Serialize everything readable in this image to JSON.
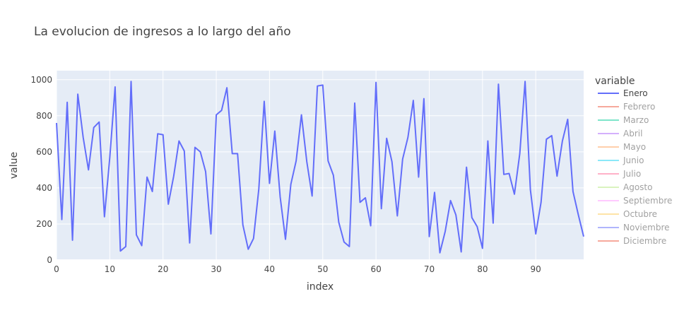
{
  "chart_data": {
    "type": "line",
    "title": "La evolucion de ingresos a lo largo del año",
    "xlabel": "index",
    "ylabel": "value",
    "xlim": [
      0,
      99
    ],
    "ylim": [
      0,
      1050
    ],
    "x_ticks": [
      0,
      10,
      20,
      30,
      40,
      50,
      60,
      70,
      80,
      90
    ],
    "y_ticks": [
      0,
      200,
      400,
      600,
      800,
      1000
    ],
    "grid": true,
    "legend": {
      "title": "variable",
      "placement": "right",
      "entries": [
        {
          "name": "Enero",
          "color": "#636efa",
          "visible": true
        },
        {
          "name": "Febrero",
          "color": "#ef553b",
          "visible": false
        },
        {
          "name": "Marzo",
          "color": "#00cc96",
          "visible": false
        },
        {
          "name": "Abril",
          "color": "#ab63fa",
          "visible": false
        },
        {
          "name": "Mayo",
          "color": "#ffa15a",
          "visible": false
        },
        {
          "name": "Junio",
          "color": "#19d3f3",
          "visible": false
        },
        {
          "name": "Julio",
          "color": "#ff6692",
          "visible": false
        },
        {
          "name": "Agosto",
          "color": "#b6e880",
          "visible": false
        },
        {
          "name": "Septiembre",
          "color": "#ff97ff",
          "visible": false
        },
        {
          "name": "Octubre",
          "color": "#fecb52",
          "visible": false
        },
        {
          "name": "Noviembre",
          "color": "#636efa",
          "visible": false
        },
        {
          "name": "Diciembre",
          "color": "#ef553b",
          "visible": false
        }
      ]
    },
    "series": [
      {
        "name": "Enero",
        "color": "#636efa",
        "values": [
          760,
          225,
          875,
          110,
          920,
          680,
          500,
          735,
          765,
          240,
          570,
          960,
          50,
          75,
          990,
          140,
          80,
          460,
          380,
          700,
          695,
          310,
          465,
          660,
          605,
          95,
          625,
          600,
          490,
          145,
          805,
          830,
          955,
          590,
          590,
          195,
          60,
          120,
          395,
          880,
          425,
          715,
          350,
          115,
          420,
          550,
          805,
          545,
          355,
          965,
          970,
          550,
          470,
          210,
          100,
          75,
          870,
          320,
          345,
          190,
          985,
          285,
          675,
          545,
          245,
          560,
          680,
          885,
          460,
          895,
          130,
          375,
          40,
          160,
          330,
          250,
          45,
          515,
          235,
          185,
          65,
          660,
          205,
          975,
          475,
          480,
          365,
          590,
          990,
          390,
          145,
          320,
          670,
          690,
          465,
          660,
          780,
          380,
          250,
          130
        ]
      }
    ]
  }
}
